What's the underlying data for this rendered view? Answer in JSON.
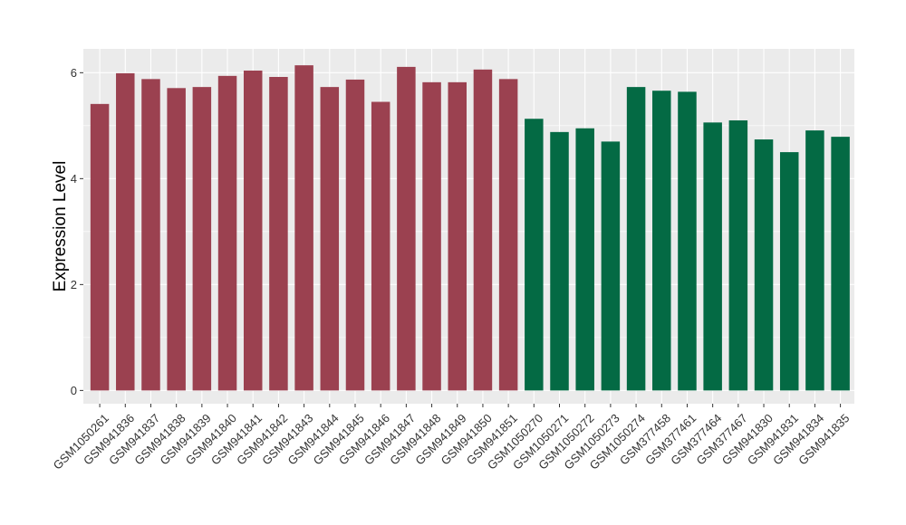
{
  "chart_data": {
    "type": "bar",
    "title": "",
    "xlabel": "",
    "ylabel": "Expression Level",
    "ylim": [
      -0.25,
      6.45
    ],
    "yticks": [
      0,
      2,
      4,
      6
    ],
    "grid": true,
    "legend": "none",
    "panel_background": "#ebebeb",
    "categories": [
      "GSM1050261",
      "GSM941836",
      "GSM941837",
      "GSM941838",
      "GSM941839",
      "GSM941840",
      "GSM941841",
      "GSM941842",
      "GSM941843",
      "GSM941844",
      "GSM941845",
      "GSM941846",
      "GSM941847",
      "GSM941848",
      "GSM941849",
      "GSM941850",
      "GSM941851",
      "GSM1050270",
      "GSM1050271",
      "GSM1050272",
      "GSM1050273",
      "GSM1050274",
      "GSM377458",
      "GSM377461",
      "GSM377464",
      "GSM377467",
      "GSM941830",
      "GSM941831",
      "GSM941834",
      "GSM941835"
    ],
    "values": [
      5.41,
      5.99,
      5.88,
      5.71,
      5.73,
      5.94,
      6.04,
      5.92,
      6.14,
      5.73,
      5.87,
      5.45,
      6.11,
      5.82,
      5.82,
      6.06,
      5.88,
      5.13,
      4.88,
      4.95,
      4.7,
      5.73,
      5.66,
      5.64,
      5.06,
      5.1,
      4.74,
      4.5,
      4.91,
      4.79
    ],
    "bar_colors": [
      "#9b4150",
      "#9b4150",
      "#9b4150",
      "#9b4150",
      "#9b4150",
      "#9b4150",
      "#9b4150",
      "#9b4150",
      "#9b4150",
      "#9b4150",
      "#9b4150",
      "#9b4150",
      "#9b4150",
      "#9b4150",
      "#9b4150",
      "#9b4150",
      "#9b4150",
      "#046a44",
      "#046a44",
      "#046a44",
      "#046a44",
      "#046a44",
      "#046a44",
      "#046a44",
      "#046a44",
      "#046a44",
      "#046a44",
      "#046a44",
      "#046a44",
      "#046a44"
    ]
  }
}
